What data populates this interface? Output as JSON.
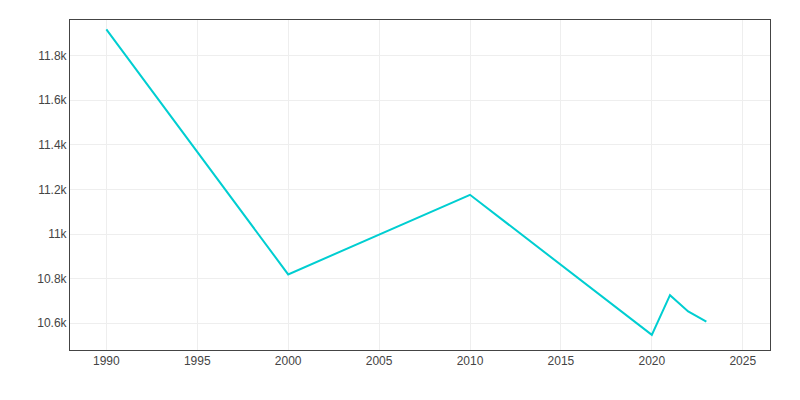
{
  "chart_data": {
    "type": "line",
    "x": [
      1990,
      2000,
      2010,
      2020,
      2021,
      2022,
      2023
    ],
    "series": [
      {
        "color": "#00CED1",
        "values": [
          11918,
          10819,
          11176,
          10548,
          10726,
          10653,
          10607
        ]
      }
    ],
    "xlim": [
      1988,
      2026.5
    ],
    "xticks": [
      1990,
      1995,
      2000,
      2005,
      2010,
      2015,
      2020,
      2025
    ],
    "ylim": [
      10480,
      11960
    ],
    "yticks": [
      {
        "value": 10600,
        "label": "10.6k"
      },
      {
        "value": 10800,
        "label": "10.8k"
      },
      {
        "value": 11000,
        "label": "11k"
      },
      {
        "value": 11200,
        "label": "11.2k"
      },
      {
        "value": 11400,
        "label": "11.4k"
      },
      {
        "value": 11600,
        "label": "11.6k"
      },
      {
        "value": 11800,
        "label": "11.8k"
      }
    ],
    "grid": true
  }
}
